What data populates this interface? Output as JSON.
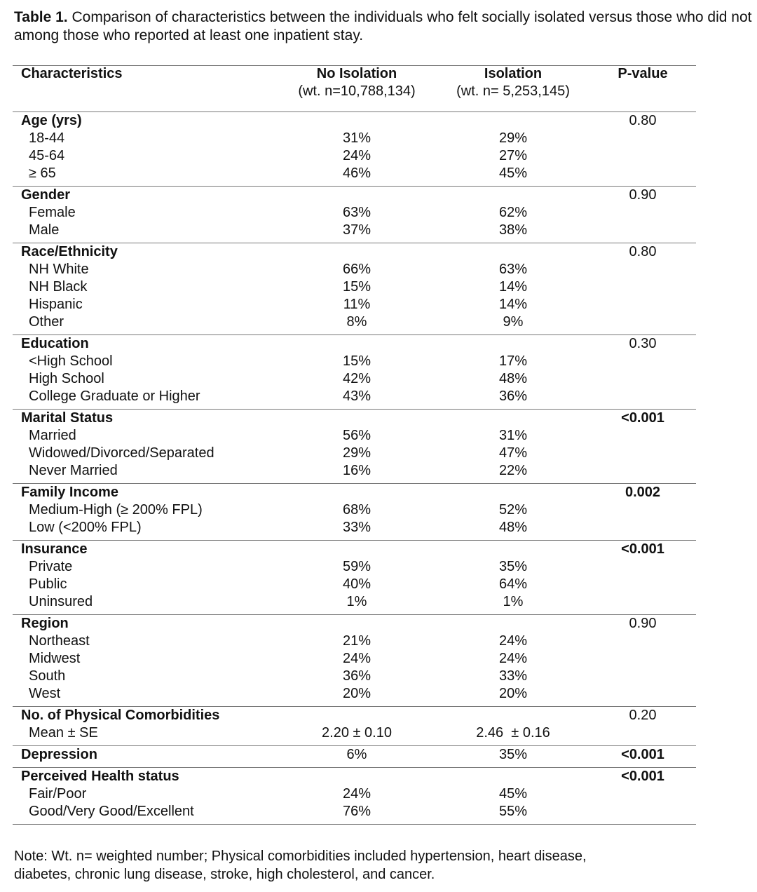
{
  "caption": {
    "label": "Table 1.",
    "text": "Comparison of characteristics between the individuals who felt socially isolated versus those who did not among those who reported at least one inpatient stay."
  },
  "table": {
    "header": [
      [
        "Characteristics"
      ],
      [
        "No Isolation",
        "(wt. n=10,788,134)"
      ],
      [
        "Isolation",
        "(wt. n= 5,253,145)"
      ],
      [
        "P-value"
      ]
    ],
    "groups": [
      {
        "name": "Age (yrs)",
        "p": "0.80",
        "p_bold": false,
        "rows": [
          [
            "18-44",
            "31%",
            "29%"
          ],
          [
            "45-64",
            "24%",
            "27%"
          ],
          [
            "≥ 65",
            "46%",
            "45%"
          ]
        ]
      },
      {
        "name": "Gender",
        "p": "0.90",
        "p_bold": false,
        "rows": [
          [
            "Female",
            "63%",
            "62%"
          ],
          [
            "Male",
            "37%",
            "38%"
          ]
        ]
      },
      {
        "name": "Race/Ethnicity",
        "p": "0.80",
        "p_bold": false,
        "rows": [
          [
            "NH White",
            "66%",
            "63%"
          ],
          [
            "NH Black",
            "15%",
            "14%"
          ],
          [
            "Hispanic",
            "11%",
            "14%"
          ],
          [
            "Other",
            "8%",
            "9%"
          ]
        ]
      },
      {
        "name": "Education",
        "p": "0.30",
        "p_bold": false,
        "rows": [
          [
            "<High School",
            "15%",
            "17%"
          ],
          [
            "High School",
            "42%",
            "48%"
          ],
          [
            "College Graduate or Higher",
            "43%",
            "36%"
          ]
        ]
      },
      {
        "name": "Marital Status",
        "p": "<0.001",
        "p_bold": true,
        "rows": [
          [
            "Married",
            "56%",
            "31%"
          ],
          [
            "Widowed/Divorced/Separated",
            "29%",
            "47%"
          ],
          [
            "Never Married",
            "16%",
            "22%"
          ]
        ]
      },
      {
        "name": "Family Income",
        "p": "0.002",
        "p_bold": true,
        "rows": [
          [
            "Medium-High (≥ 200% FPL)",
            "68%",
            "52%"
          ],
          [
            "Low (<200% FPL)",
            "33%",
            "48%"
          ]
        ]
      },
      {
        "name": "Insurance",
        "p": "<0.001",
        "p_bold": true,
        "rows": [
          [
            "Private",
            "59%",
            "35%"
          ],
          [
            "Public",
            "40%",
            "64%"
          ],
          [
            "Uninsured",
            "1%",
            "1%"
          ]
        ]
      },
      {
        "name": "Region",
        "p": "0.90",
        "p_bold": false,
        "rows": [
          [
            "Northeast",
            "21%",
            "24%"
          ],
          [
            "Midwest",
            "24%",
            "24%"
          ],
          [
            "South",
            "36%",
            "33%"
          ],
          [
            "West",
            "20%",
            "20%"
          ]
        ]
      },
      {
        "name": "No. of Physical Comorbidities",
        "p": "0.20",
        "p_bold": false,
        "rows": [
          [
            "Mean ± SE",
            "2.20 ± 0.10",
            "2.46  ± 0.16"
          ]
        ]
      },
      {
        "name": "Depression",
        "p": "<0.001",
        "p_bold": true,
        "values": [
          "6%",
          "35%"
        ],
        "rows": []
      },
      {
        "name": "Perceived Health status",
        "p": "<0.001",
        "p_bold": true,
        "rows": [
          [
            "Fair/Poor",
            "24%",
            "45%"
          ],
          [
            "Good/Very Good/Excellent",
            "76%",
            "55%"
          ]
        ]
      }
    ]
  },
  "note": [
    "Note: Wt. n= weighted number; Physical comorbidities included hypertension, heart disease,",
    "diabetes, chronic lung disease, stroke, high cholesterol, and cancer."
  ]
}
